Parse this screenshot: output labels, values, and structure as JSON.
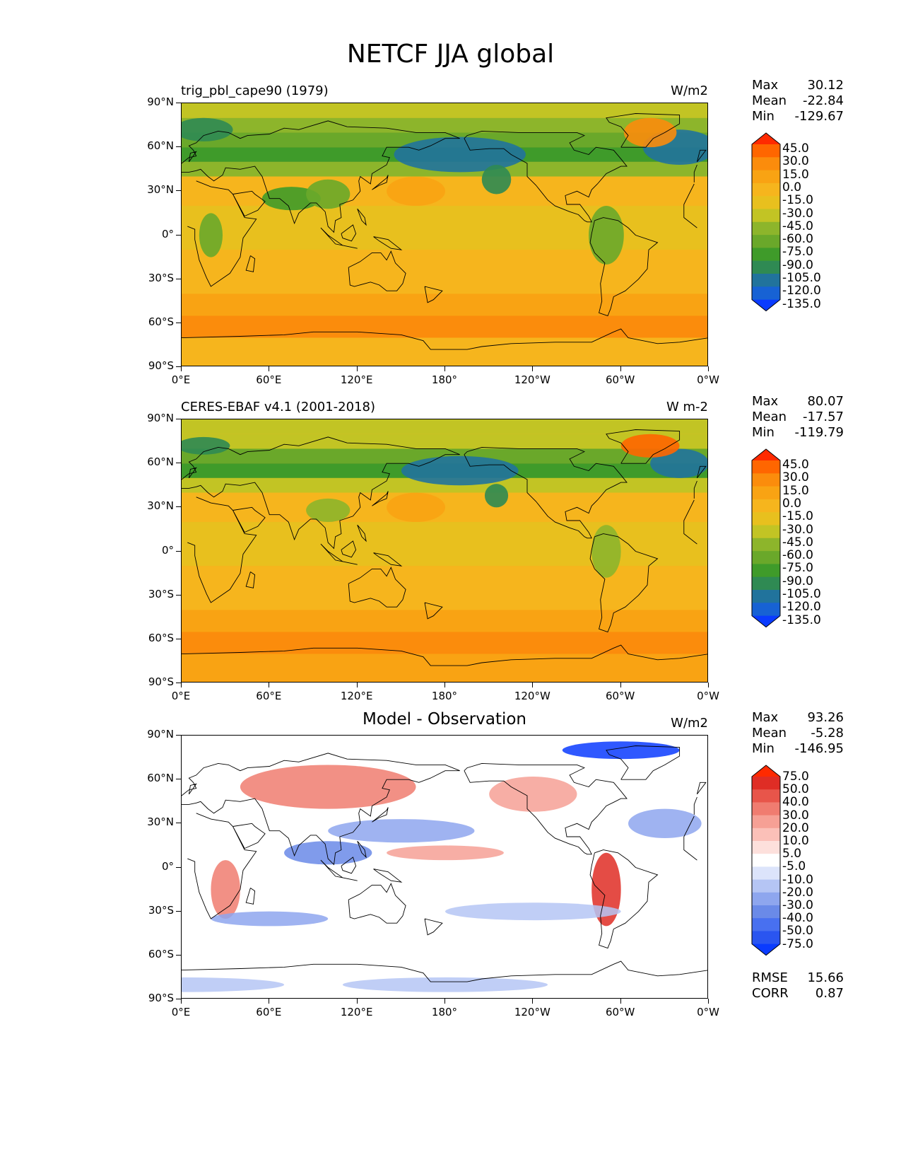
{
  "title": "NETCF JJA global",
  "axes": {
    "y_ticks": [
      "90°N",
      "60°N",
      "30°N",
      "0°",
      "30°S",
      "60°S",
      "90°S"
    ],
    "x_ticks": [
      "0°E",
      "60°E",
      "120°E",
      "180°",
      "120°W",
      "60°W",
      "0°W"
    ]
  },
  "panels": [
    {
      "title": "trig_pbl_cape90 (1979)",
      "units": "W/m2",
      "stats": {
        "max_label": "Max",
        "max": "30.12",
        "mean_label": "Mean",
        "mean": "-22.84",
        "min_label": "Min",
        "min": "-129.67"
      },
      "colorbar_labels": [
        "45.0",
        "30.0",
        "15.0",
        "0.0",
        "-15.0",
        "-30.0",
        "-45.0",
        "-60.0",
        "-75.0",
        "-90.0",
        "-105.0",
        "-120.0",
        "-135.0"
      ]
    },
    {
      "title": "CERES-EBAF v4.1 (2001-2018)",
      "units": "W m-2",
      "stats": {
        "max_label": "Max",
        "max": "80.07",
        "mean_label": "Mean",
        "mean": "-17.57",
        "min_label": "Min",
        "min": "-119.79"
      },
      "colorbar_labels": [
        "45.0",
        "30.0",
        "15.0",
        "0.0",
        "-15.0",
        "-30.0",
        "-45.0",
        "-60.0",
        "-75.0",
        "-90.0",
        "-105.0",
        "-120.0",
        "-135.0"
      ]
    },
    {
      "title": "Model - Observation",
      "units": "W/m2",
      "stats": {
        "max_label": "Max",
        "max": "93.26",
        "mean_label": "Mean",
        "mean": "-5.28",
        "min_label": "Min",
        "min": "-146.95"
      },
      "colorbar_labels": [
        "75.0",
        "50.0",
        "40.0",
        "30.0",
        "20.0",
        "10.0",
        "5.0",
        "-5.0",
        "-10.0",
        "-20.0",
        "-30.0",
        "-40.0",
        "-50.0",
        "-75.0"
      ],
      "extra_stats": {
        "rmse_label": "RMSE",
        "rmse": "15.66",
        "corr_label": "CORR",
        "corr": "0.87"
      }
    }
  ],
  "colors": {
    "field_palette": [
      "#0a3bff",
      "#1762d4",
      "#21739c",
      "#2f8a53",
      "#3f9b2a",
      "#6aa82a",
      "#8db52b",
      "#c2c424",
      "#e8c01e",
      "#f6b51d",
      "#f9a313",
      "#fb8c0c",
      "#ff6600",
      "#ff2a00"
    ],
    "diff_palette": [
      "#0a3bff",
      "#2a55f0",
      "#4870f0",
      "#6a8ae8",
      "#8ea6ee",
      "#b5c5f4",
      "#dce4fb",
      "#ffffff",
      "#fde0dc",
      "#fbc0b8",
      "#f6a095",
      "#f07c70",
      "#e8554a",
      "#df2d25",
      "#ff2a00"
    ]
  }
}
